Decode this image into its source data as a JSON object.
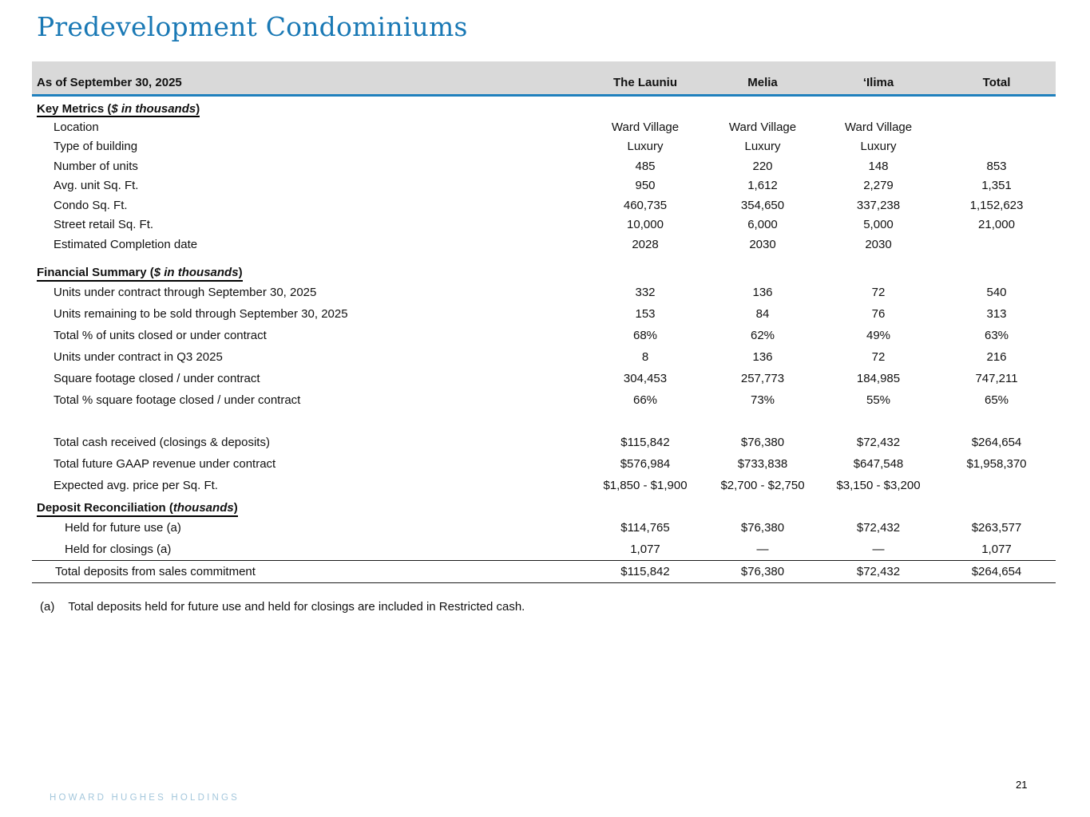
{
  "page": {
    "title": "Predevelopment Condominiums",
    "page_number": "21",
    "footer_brand": "HOWARD HUGHES HOLDINGS",
    "footnote_marker": "(a)",
    "footnote_text": "Total deposits held for future use and held for closings are included in Restricted cash."
  },
  "colors": {
    "title_blue": "#1a79b5",
    "accent_blue": "#1f80bd",
    "header_gray": "#d9d9d9",
    "footer_blue": "#a4c7dc"
  },
  "table": {
    "header_label": "As of September 30, 2025",
    "columns": [
      "The Launiu",
      "Melia",
      "‘Ilima",
      "Total"
    ],
    "rows": [
      {
        "pre": "Key Metrics (",
        "italic": "$ in thousands",
        "post": ")"
      },
      {
        "label": "Location",
        "values": [
          "Ward Village",
          "Ward Village",
          "Ward Village",
          ""
        ]
      },
      {
        "label": "Type of building",
        "values": [
          "Luxury",
          "Luxury",
          "Luxury",
          ""
        ]
      },
      {
        "label": "Number of units",
        "values": [
          "485",
          "220",
          "148",
          "853"
        ]
      },
      {
        "label": "Avg. unit Sq. Ft.",
        "values": [
          "950",
          "1,612",
          "2,279",
          "1,351"
        ]
      },
      {
        "label": "Condo Sq. Ft.",
        "values": [
          "460,735",
          "354,650",
          "337,238",
          "1,152,623"
        ]
      },
      {
        "label": "Street retail Sq. Ft.",
        "values": [
          "10,000",
          "6,000",
          "5,000",
          "21,000"
        ]
      },
      {
        "label": "Estimated Completion date",
        "values": [
          "2028",
          "2030",
          "2030",
          ""
        ]
      },
      {
        "pre": "Financial Summary (",
        "italic": "$ in thousands",
        "post": ")"
      },
      {
        "label": "Units under contract through September 30, 2025",
        "values": [
          "332",
          "136",
          "72",
          "540"
        ]
      },
      {
        "label": "Units remaining to be sold through September 30, 2025",
        "values": [
          "153",
          "84",
          "76",
          "313"
        ]
      },
      {
        "label": "Total % of units closed or under contract",
        "values": [
          "68%",
          "62%",
          "49%",
          "63%"
        ]
      },
      {
        "label": "Units under contract in Q3 2025",
        "values": [
          "8",
          "136",
          "72",
          "216"
        ]
      },
      {
        "label": "Square footage closed / under contract",
        "values": [
          "304,453",
          "257,773",
          "184,985",
          "747,211"
        ]
      },
      {
        "label": "Total % square footage closed / under contract",
        "values": [
          "66%",
          "73%",
          "55%",
          "65%"
        ]
      },
      {
        "label": "Total cash received (closings & deposits)",
        "values": [
          "$115,842",
          "$76,380",
          "$72,432",
          "$264,654"
        ]
      },
      {
        "label": "Total future GAAP revenue under contract",
        "values": [
          "$576,984",
          "$733,838",
          "$647,548",
          "$1,958,370"
        ]
      },
      {
        "label": "Expected avg. price per Sq. Ft.",
        "values": [
          "$1,850 - $1,900",
          "$2,700 - $2,750",
          "$3,150 - $3,200",
          ""
        ]
      },
      {
        "pre": "Deposit Reconciliation (",
        "italic": "thousands",
        "post": ")"
      },
      {
        "label": "Held for future use (a)",
        "values": [
          "$114,765",
          "$76,380",
          "$72,432",
          "$263,577"
        ]
      },
      {
        "label": "Held for closings (a)",
        "values": [
          "1,077",
          "—",
          "—",
          "1,077"
        ]
      },
      {
        "label": "Total deposits from sales commitment",
        "values": [
          "$115,842",
          "$76,380",
          "$72,432",
          "$264,654"
        ]
      }
    ]
  }
}
